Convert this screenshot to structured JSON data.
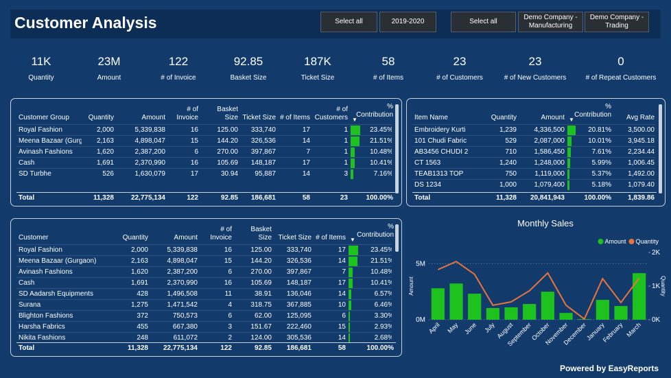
{
  "header": {
    "title": "Customer Analysis",
    "filters": [
      "Select all",
      "2019-2020",
      "Select all",
      "Demo Company - Manufacturing",
      "Demo Company - Trading"
    ]
  },
  "kpis": [
    {
      "value": "11K",
      "label": "Quantity"
    },
    {
      "value": "23M",
      "label": "Amount"
    },
    {
      "value": "122",
      "label": "# of Invoice"
    },
    {
      "value": "92.85",
      "label": "Basket Size"
    },
    {
      "value": "187K",
      "label": "Ticket Size"
    },
    {
      "value": "58",
      "label": "# of Items"
    },
    {
      "value": "23",
      "label": "# of Customers"
    },
    {
      "value": "23",
      "label": "# of New Customers"
    },
    {
      "value": "0",
      "label": "# of Repeat Customers"
    }
  ],
  "table1": {
    "columns": [
      "Customer Group",
      "Quantity",
      "Amount",
      "# of Invoice",
      "Basket Size",
      "Ticket Size",
      "# of Items",
      "# of Customers",
      "% Contribution"
    ],
    "rows": [
      [
        "Royal Fashion",
        "2,000",
        "5,339,838",
        "16",
        "125.00",
        "333,740",
        "17",
        "1",
        {
          "value": 23.45,
          "label": "23.45%"
        }
      ],
      [
        "Meena Bazaar (Gurgaon)",
        "2,163",
        "4,898,047",
        "15",
        "144.20",
        "326,536",
        "14",
        "1",
        {
          "value": 21.51,
          "label": "21.51%"
        }
      ],
      [
        "Avinash Fashions",
        "1,620",
        "2,387,200",
        "6",
        "270.00",
        "397,867",
        "7",
        "1",
        {
          "value": 10.48,
          "label": "10.48%"
        }
      ],
      [
        "Cash",
        "1,691",
        "2,370,990",
        "16",
        "105.69",
        "148,187",
        "17",
        "1",
        {
          "value": 10.41,
          "label": "10.41%"
        }
      ],
      [
        "SD Turbhe",
        "526",
        "1,630,079",
        "17",
        "30.94",
        "95,887",
        "14",
        "3",
        {
          "value": 7.16,
          "label": "7.16%"
        }
      ]
    ],
    "total": [
      "Total",
      "11,328",
      "22,775,134",
      "122",
      "92.85",
      "186,681",
      "58",
      "23",
      "100.00%"
    ]
  },
  "table2": {
    "columns": [
      "Item Name",
      "Quantity",
      "Amount",
      "% Contribution",
      "Avg Rate"
    ],
    "rows": [
      [
        "Embroidery Kurti",
        "1,239",
        "4,336,500",
        {
          "value": 20.81,
          "label": "20.81%"
        },
        "3,500.00"
      ],
      [
        "101 Chudi Fabric",
        "529",
        "2,087,000",
        {
          "value": 10.01,
          "label": "10.01%"
        },
        "3,945.18"
      ],
      [
        "AB3456 CHUDI 2",
        "710",
        "1,586,450",
        {
          "value": 7.61,
          "label": "7.61%"
        },
        "2,234.44"
      ],
      [
        "CT 1563",
        "1,240",
        "1,248,000",
        {
          "value": 5.99,
          "label": "5.99%"
        },
        "1,006.45"
      ],
      [
        "TEAB1313 TOP",
        "750",
        "1,119,000",
        {
          "value": 5.37,
          "label": "5.37%"
        },
        "1,492.00"
      ],
      [
        "DS 1234",
        "1,000",
        "1,079,400",
        {
          "value": 5.18,
          "label": "5.18%"
        },
        "1,079.40"
      ]
    ],
    "total": [
      "Total",
      "11,328",
      "20,841,943",
      "100.00%",
      "1,839.86"
    ]
  },
  "table3": {
    "columns": [
      "Customer",
      "Quantity",
      "Amount",
      "# of Invoice",
      "Basket Size",
      "Ticket Size",
      "# of Items",
      "% Contribution"
    ],
    "rows": [
      [
        "Royal Fashion",
        "2,000",
        "5,339,838",
        "16",
        "125.00",
        "333,740",
        "17",
        {
          "value": 23.45,
          "label": "23.45%"
        }
      ],
      [
        "Meena Bazaar (Gurgaon)",
        "2,163",
        "4,898,047",
        "15",
        "144.20",
        "326,536",
        "14",
        {
          "value": 21.51,
          "label": "21.51%"
        }
      ],
      [
        "Avinash Fashions",
        "1,620",
        "2,387,200",
        "6",
        "270.00",
        "397,867",
        "7",
        {
          "value": 10.48,
          "label": "10.48%"
        }
      ],
      [
        "Cash",
        "1,691",
        "2,370,990",
        "16",
        "105.69",
        "148,187",
        "17",
        {
          "value": 10.41,
          "label": "10.41%"
        }
      ],
      [
        "SD Aadarsh Equipments",
        "428",
        "1,496,508",
        "11",
        "38.91",
        "136,046",
        "14",
        {
          "value": 6.57,
          "label": "6.57%"
        }
      ],
      [
        "Surana",
        "1,275",
        "1,471,542",
        "4",
        "318.75",
        "367,885",
        "10",
        {
          "value": 6.46,
          "label": "6.46%"
        }
      ],
      [
        "Blighton Fashions",
        "372",
        "750,573",
        "6",
        "62.00",
        "125,095",
        "6",
        {
          "value": 3.3,
          "label": "3.30%"
        }
      ],
      [
        "Harsha Fabrics",
        "455",
        "667,380",
        "3",
        "151.67",
        "222,460",
        "15",
        {
          "value": 2.93,
          "label": "2.93%"
        }
      ],
      [
        "Nikita Fashions",
        "248",
        "611,072",
        "2",
        "124.00",
        "305,536",
        "14",
        {
          "value": 2.68,
          "label": "2.68%"
        }
      ]
    ],
    "total": [
      "Total",
      "11,328",
      "22,775,134",
      "122",
      "92.85",
      "186,681",
      "58",
      "100.00%"
    ]
  },
  "chart_data": {
    "type": "bar_line",
    "title": "Monthly Sales",
    "categories": [
      "April",
      "May",
      "June",
      "July",
      "August",
      "September",
      "October",
      "November",
      "December",
      "January",
      "February",
      "March"
    ],
    "series": [
      {
        "name": "Amount",
        "color": "#1ec21e",
        "type": "bar",
        "values": [
          2800000,
          3230000,
          2320000,
          1040000,
          1100000,
          1400000,
          2500000,
          600000,
          50000,
          1770000,
          1220000,
          4150000
        ]
      },
      {
        "name": "Quantity",
        "color": "#e8743b",
        "type": "line",
        "axis": "y2",
        "values": [
          1490,
          1730,
          1350,
          430,
          530,
          860,
          1390,
          430,
          20,
          1220,
          510,
          1240
        ]
      }
    ],
    "ylabel": "Amount",
    "y2label": "Quantity",
    "ylim": [
      0,
      6000000
    ],
    "yticks": [
      {
        "value": 0,
        "label": "0M"
      },
      {
        "value": 5000000,
        "label": "5M"
      }
    ],
    "y2lim": [
      0,
      2000
    ],
    "y2ticks": [
      {
        "value": 0,
        "label": "0K"
      },
      {
        "value": 1000,
        "label": "1K"
      },
      {
        "value": 2000,
        "label": "2K"
      }
    ],
    "legend": "top-right"
  },
  "footer": "Powered by EasyReports"
}
